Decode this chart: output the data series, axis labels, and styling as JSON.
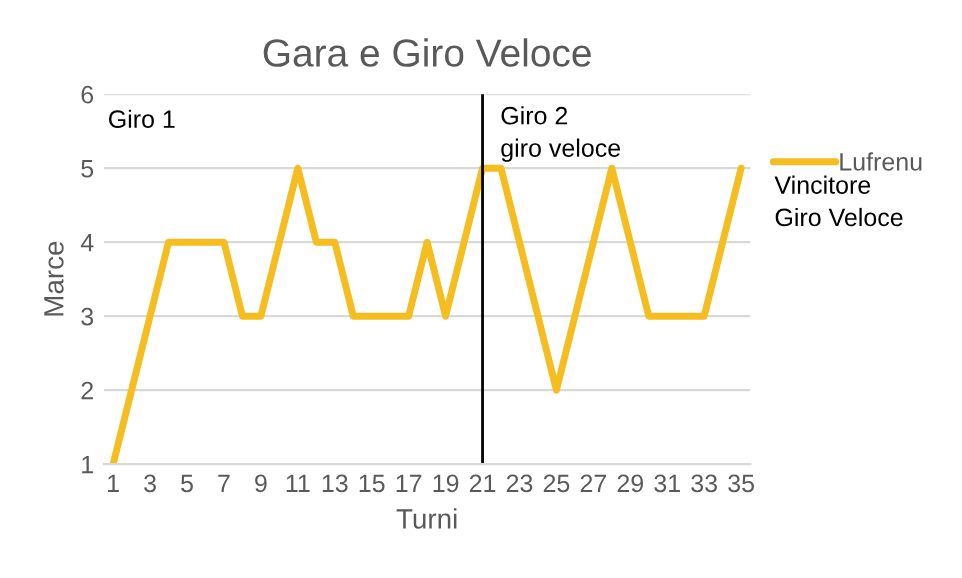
{
  "chart_data": {
    "type": "line",
    "title": "Gara e Giro Veloce",
    "xlabel": "Turni",
    "ylabel": "Marce",
    "series": [
      {
        "name": "Lufrenu",
        "color": "#f5bd1f",
        "x": [
          1,
          4,
          7,
          8,
          9,
          11,
          12,
          13,
          14,
          17,
          18,
          19,
          21,
          22,
          25,
          28,
          30,
          33,
          35
        ],
        "values": [
          1,
          4,
          4,
          3,
          3,
          5,
          4,
          4,
          3,
          3,
          4,
          3,
          5,
          5,
          2,
          5,
          3,
          3,
          5
        ]
      }
    ],
    "xlim": [
      0.5,
      35.5
    ],
    "xticks": [
      1,
      3,
      5,
      7,
      9,
      11,
      13,
      15,
      17,
      19,
      21,
      23,
      25,
      27,
      29,
      31,
      33,
      35
    ],
    "ylim": [
      1,
      6
    ],
    "yticks": [
      1,
      2,
      3,
      4,
      5,
      6
    ],
    "grid": "y",
    "legend": "right",
    "marker": "none",
    "line_style": "solid",
    "ref_lines": [
      {
        "axis": "x",
        "value": 21,
        "color": "#000000"
      }
    ],
    "annotations": [
      "Giro 1",
      "Giro 2\ngiro veloce",
      "Vincitore\nGiro Veloce"
    ]
  }
}
